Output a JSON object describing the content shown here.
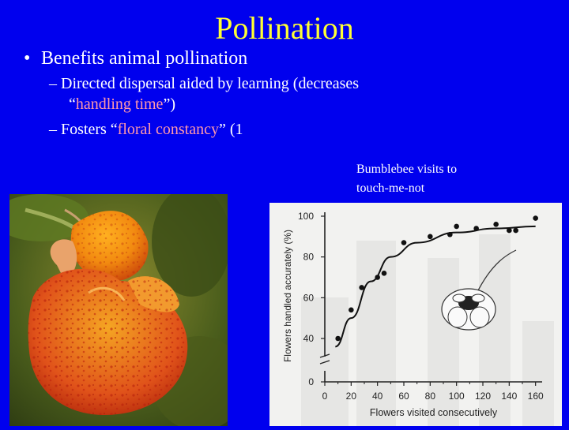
{
  "slide": {
    "title": "Pollination",
    "bullet1": "Benefits animal pollination",
    "sub1_line1": "Directed dispersal aided by learning (decreases",
    "sub1_line2_q1": "“",
    "sub1_line2_hl": "handling time",
    "sub1_line2_q2": "”)",
    "sub2_pre": "Fosters “",
    "sub2_hl": "floral constancy",
    "sub2_post": "” (1",
    "caption_line1": "Bumblebee visits to",
    "caption_line2": "touch-me-not",
    "colors": {
      "background": "#0000ee",
      "title": "#ffff33",
      "highlight": "#ff99aa",
      "text": "#ffffff"
    }
  },
  "chart_data": {
    "type": "scatter",
    "xlabel": "Flowers visited consecutively",
    "ylabel": "Flowers handled accurately (%)",
    "xticks": [
      0,
      20,
      40,
      60,
      80,
      100,
      120,
      140,
      160
    ],
    "yticks": [
      0,
      40,
      60,
      80,
      100
    ],
    "xlim": [
      0,
      165
    ],
    "ylim": [
      0,
      105
    ],
    "axis_break": true,
    "points": [
      {
        "x": 10,
        "y": 40
      },
      {
        "x": 20,
        "y": 54
      },
      {
        "x": 28,
        "y": 65
      },
      {
        "x": 40,
        "y": 70
      },
      {
        "x": 45,
        "y": 72
      },
      {
        "x": 60,
        "y": 87
      },
      {
        "x": 80,
        "y": 90
      },
      {
        "x": 95,
        "y": 91
      },
      {
        "x": 100,
        "y": 95
      },
      {
        "x": 115,
        "y": 94
      },
      {
        "x": 130,
        "y": 96
      },
      {
        "x": 140,
        "y": 93
      },
      {
        "x": 145,
        "y": 93
      },
      {
        "x": 160,
        "y": 99
      }
    ],
    "fit_curve": [
      {
        "x": 8,
        "y": 36
      },
      {
        "x": 20,
        "y": 50
      },
      {
        "x": 35,
        "y": 68
      },
      {
        "x": 50,
        "y": 80
      },
      {
        "x": 70,
        "y": 87
      },
      {
        "x": 100,
        "y": 92
      },
      {
        "x": 130,
        "y": 94
      },
      {
        "x": 160,
        "y": 95
      }
    ]
  }
}
